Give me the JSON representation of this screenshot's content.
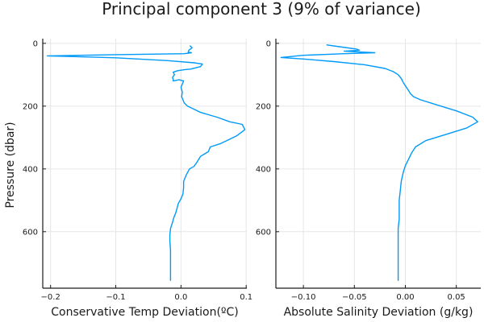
{
  "chart_data": {
    "title": "Principal component 3 (9% of variance)",
    "line_color": "#009af9",
    "grid": true,
    "shared_ylabel": "Pressure (dbar)",
    "panels": [
      {
        "type": "line",
        "xlabel": "Conservative Temp Deviation(ºC)",
        "xlim": [
          -0.212,
          0.101
        ],
        "ylim": [
          780,
          -15
        ],
        "y_inverted": true,
        "xticks": [
          -0.2,
          -0.1,
          0.0,
          0.1
        ],
        "xtick_labels": [
          "−0.2",
          "−0.1",
          "0.0",
          "0.1"
        ],
        "yticks": [
          0,
          200,
          400,
          600
        ],
        "ytick_labels": [
          "0",
          "200",
          "400",
          "600"
        ],
        "series": [
          {
            "x": [
              0.014,
              0.017,
              0.012,
              0.011,
              0.016,
              0.005,
              -0.1,
              -0.205,
              -0.1,
              -0.02,
              0.02,
              0.033,
              0.03,
              0.015,
              0.005,
              -0.005,
              -0.012,
              -0.01,
              -0.013,
              -0.012,
              -0.012,
              -0.008,
              -0.003,
              0.004,
              0.0,
              0.002,
              0.001,
              0.003,
              0.005,
              0.01,
              0.03,
              0.055,
              0.075,
              0.094,
              0.098,
              0.085,
              0.07,
              0.06,
              0.045,
              0.042,
              0.03,
              0.024,
              0.02,
              0.013,
              0.008,
              0.004,
              0.004,
              0.003,
              0.0,
              -0.004,
              -0.006,
              -0.008,
              -0.011,
              -0.013,
              -0.016,
              -0.017,
              -0.017,
              -0.016,
              -0.016,
              -0.016,
              -0.016,
              -0.016
            ],
            "y": [
              8,
              14,
              22,
              28,
              30,
              33,
              36,
              40,
              46,
              55,
              62,
              66,
              74,
              82,
              84,
              87,
              92,
              100,
              108,
              115,
              120,
              118,
              116,
              120,
              140,
              155,
              170,
              180,
              190,
              200,
              220,
              235,
              250,
              258,
              275,
              295,
              310,
              320,
              330,
              345,
              360,
              380,
              392,
              400,
              420,
              440,
              460,
              480,
              495,
              510,
              525,
              540,
              555,
              570,
              590,
              610,
              630,
              660,
              690,
              710,
              730,
              755
            ]
          }
        ]
      },
      {
        "type": "line",
        "xlabel": "Absolute Salinity Deviation (g/kg)",
        "xlim": [
          -0.127,
          0.074
        ],
        "ylim": [
          780,
          -15
        ],
        "y_inverted": true,
        "xticks": [
          -0.1,
          -0.05,
          0.0,
          0.05
        ],
        "xtick_labels": [
          "−0.10",
          "−0.05",
          "0.00",
          "0.05"
        ],
        "yticks": [
          0,
          200,
          400,
          600
        ],
        "ytick_labels": [
          "0",
          "200",
          "400",
          "600"
        ],
        "series": [
          {
            "x": [
              -0.077,
              -0.062,
              -0.048,
              -0.045,
              -0.06,
              -0.03,
              -0.06,
              -0.1,
              -0.122,
              -0.1,
              -0.07,
              -0.04,
              -0.02,
              -0.012,
              -0.007,
              -0.004,
              -0.002,
              0.0,
              0.003,
              0.005,
              0.008,
              0.015,
              0.03,
              0.05,
              0.066,
              0.071,
              0.06,
              0.04,
              0.02,
              0.01,
              0.006,
              0.003,
              0.0,
              -0.002,
              -0.004,
              -0.005,
              -0.006,
              -0.006,
              -0.006,
              -0.007,
              -0.007,
              -0.007,
              -0.007,
              -0.007,
              -0.007
            ],
            "y": [
              5,
              12,
              18,
              22,
              25,
              30,
              33,
              38,
              45,
              50,
              58,
              68,
              80,
              90,
              100,
              112,
              125,
              135,
              150,
              160,
              170,
              180,
              195,
              215,
              235,
              250,
              270,
              290,
              310,
              330,
              350,
              370,
              390,
              410,
              440,
              470,
              500,
              530,
              560,
              590,
              620,
              650,
              690,
              720,
              755
            ]
          }
        ]
      }
    ]
  }
}
